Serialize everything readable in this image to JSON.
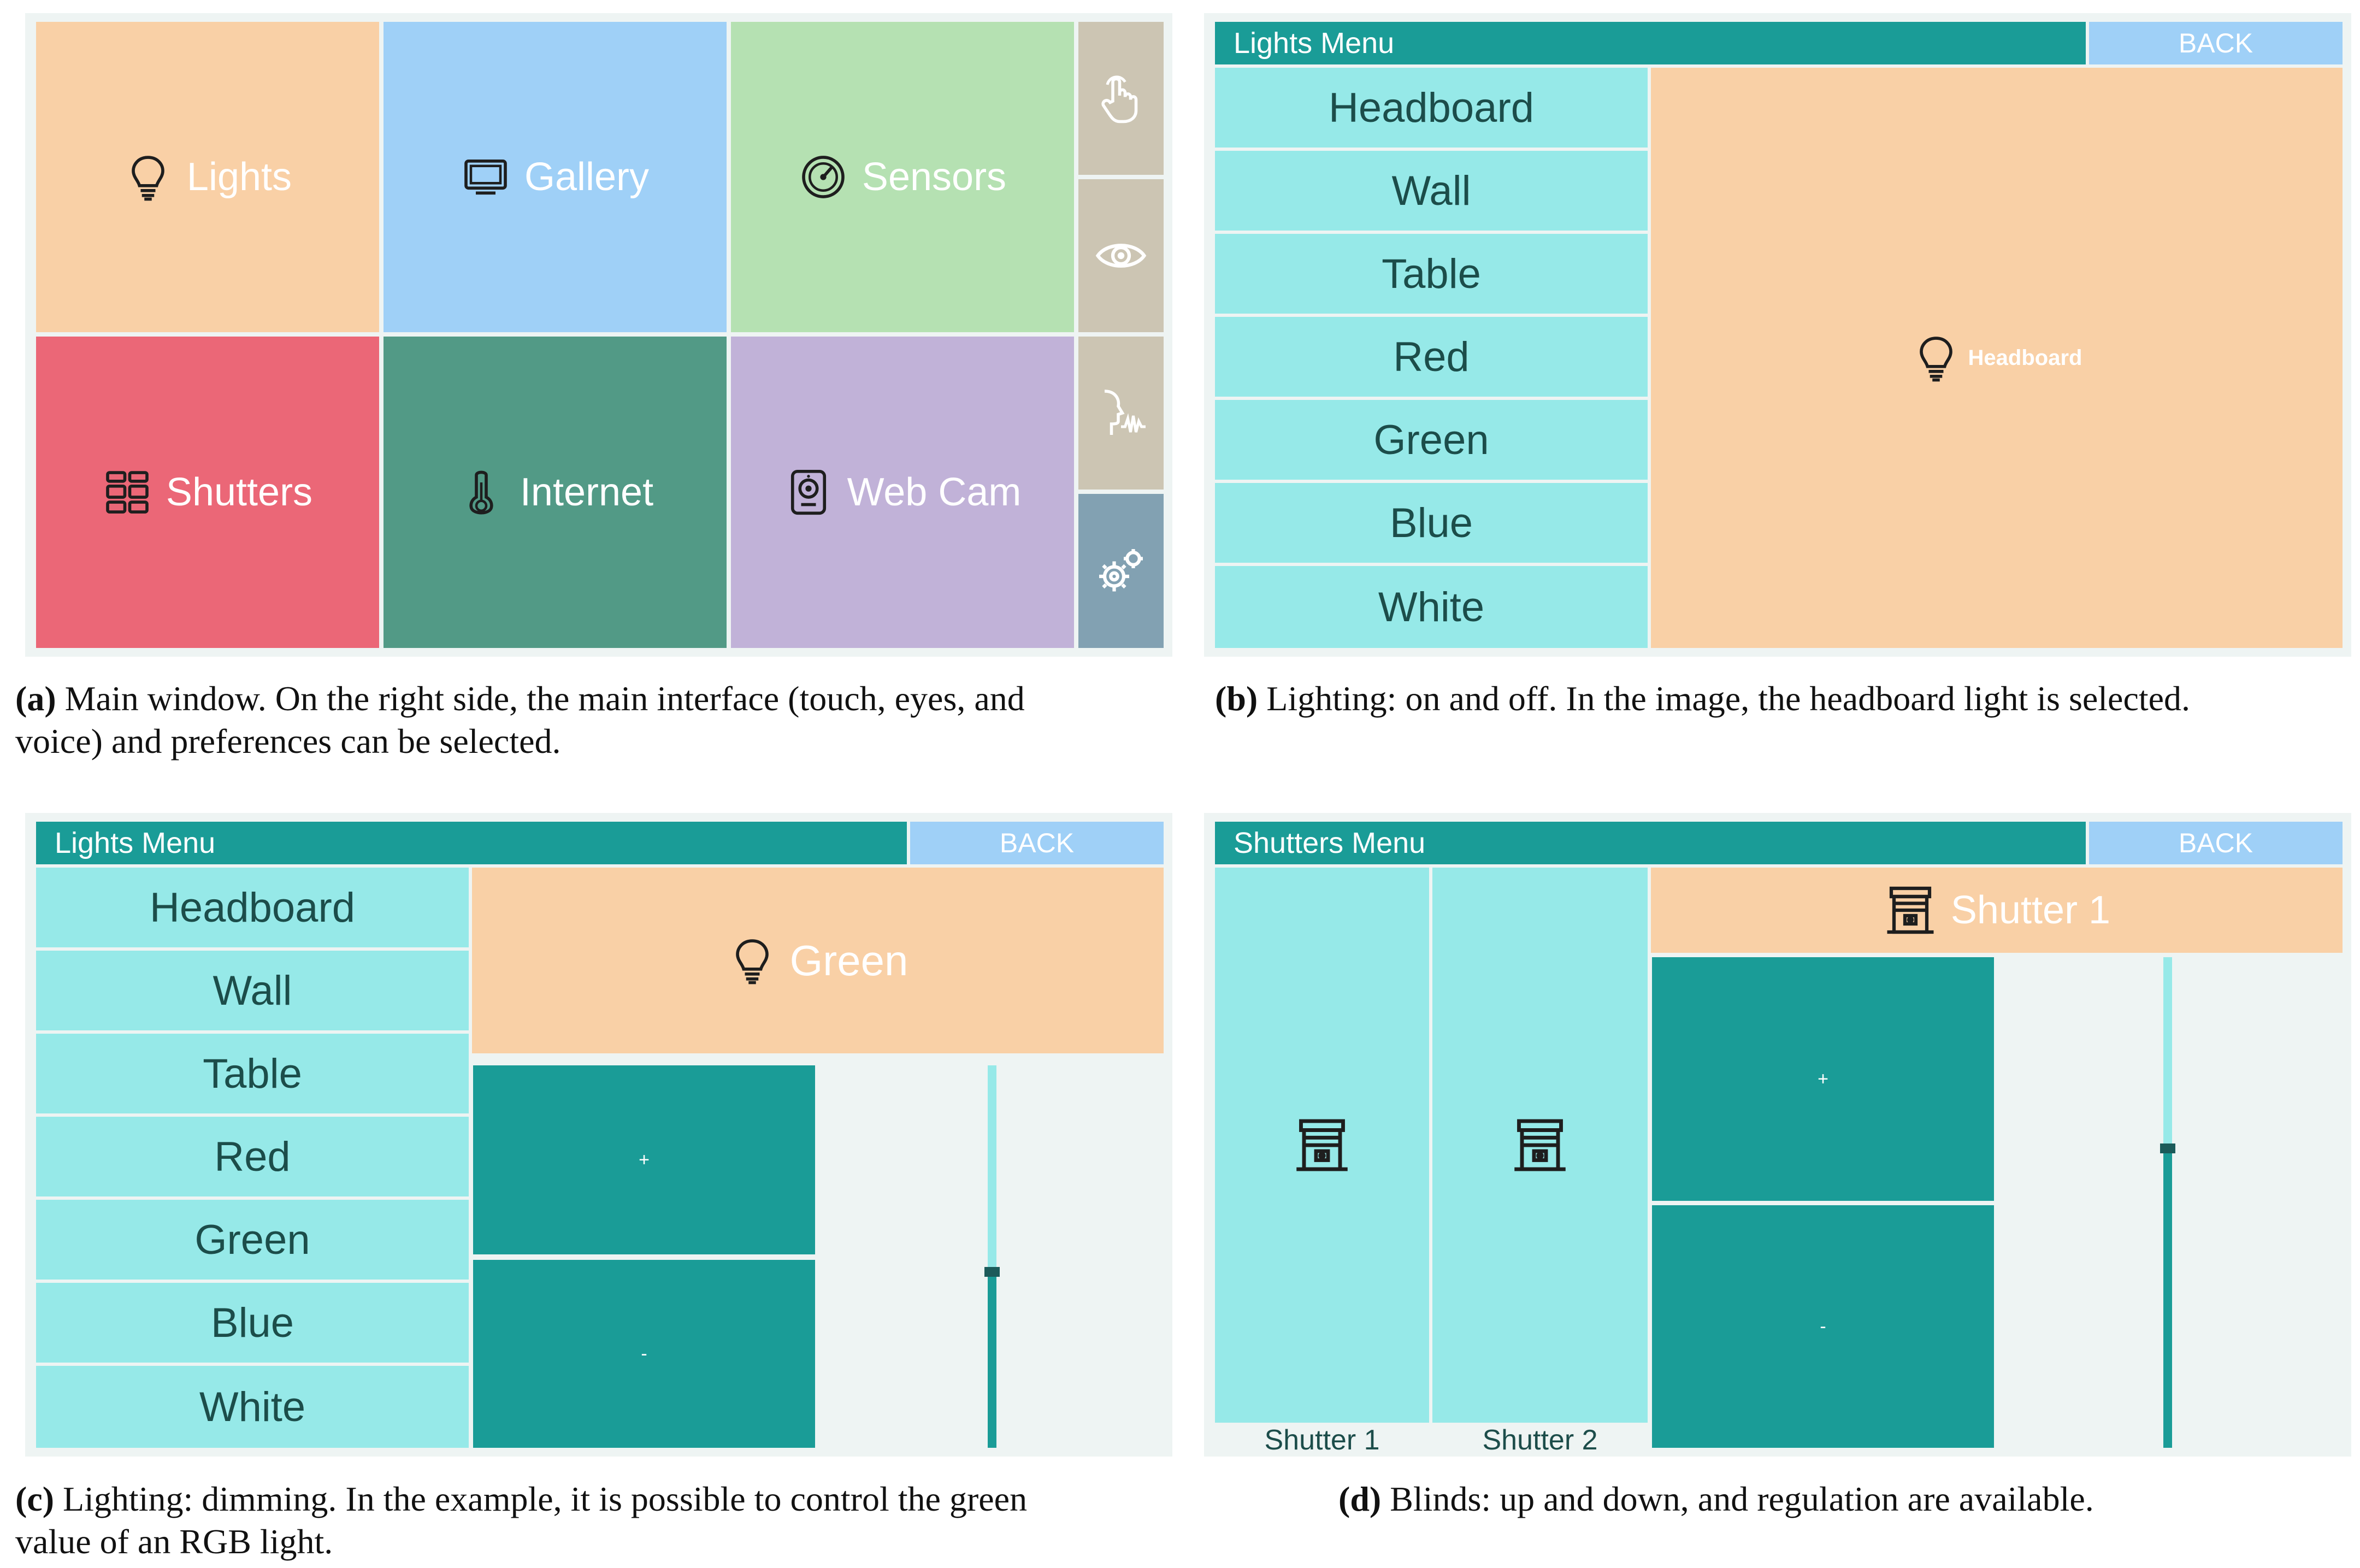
{
  "panel_a": {
    "tiles": [
      {
        "label": "Lights",
        "icon": "bulb-icon",
        "color": "#f9d0a6"
      },
      {
        "label": "Gallery",
        "icon": "monitor-icon",
        "color": "#9fd0f7"
      },
      {
        "label": "Sensors",
        "icon": "gauge-icon",
        "color": "#b5e1b2"
      },
      {
        "label": "Shutters",
        "icon": "grid-icon",
        "color": "#eb6777"
      },
      {
        "label": "Internet",
        "icon": "thermometer-icon",
        "color": "#529a86"
      },
      {
        "label": "Web Cam",
        "icon": "webcam-icon",
        "color": "#c1b2d8"
      }
    ],
    "side_buttons": [
      {
        "icon": "touch-hand-icon",
        "color": "#ccc5b3"
      },
      {
        "icon": "eye-icon",
        "color": "#ccc5b3"
      },
      {
        "icon": "voice-icon",
        "color": "#ccc5b3"
      },
      {
        "icon": "gear-icon",
        "color": "#82a1b2"
      }
    ],
    "caption_letter": "(a)",
    "caption_line1": "Main window. On the right side, the main interface (touch, eyes, and",
    "caption_line2": "voice) and preferences can be selected."
  },
  "panel_b": {
    "title": "Lights Menu",
    "back": "BACK",
    "items": [
      "Headboard",
      "Wall",
      "Table",
      "Red",
      "Green",
      "Blue",
      "White"
    ],
    "selected_label": "Headboard",
    "caption_letter": "(b)",
    "caption_line1": "Lighting: on and off. In the image, the headboard light is selected."
  },
  "panel_c": {
    "title": "Lights Menu",
    "back": "BACK",
    "items": [
      "Headboard",
      "Wall",
      "Table",
      "Red",
      "Green",
      "Blue",
      "White"
    ],
    "selected_label": "Green",
    "plus": "+",
    "minus": "-",
    "slider_level": 0.46,
    "caption_letter": "(c)",
    "caption_line1": "Lighting: dimming. In the example, it is possible to control the green",
    "caption_line2": "value of an RGB light."
  },
  "panel_d": {
    "title": "Shutters Menu",
    "back": "BACK",
    "shutters": [
      "Shutter 1",
      "Shutter 2"
    ],
    "selected_label": "Shutter 1",
    "plus": "+",
    "minus": "-",
    "slider_level": 0.61,
    "caption_letter": "(d)",
    "caption_line1": "Blinds: up and down, and regulation are available."
  }
}
